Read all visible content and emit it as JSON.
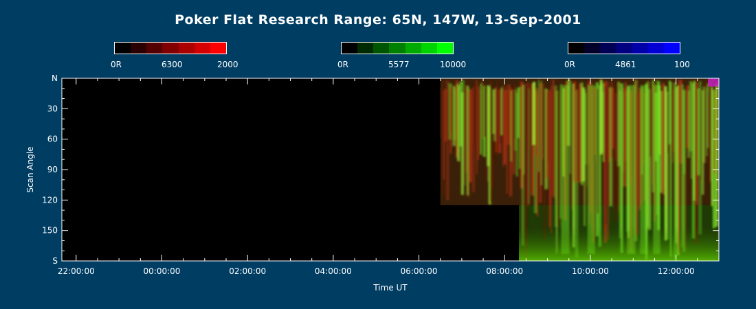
{
  "page": {
    "title": "Poker Flat Research Range: 65N, 147W, 13-Sep-2001"
  },
  "colorbars": [
    {
      "min_label": "0R",
      "mid_label": "6300",
      "max_label": "2000",
      "colors": [
        "#000000",
        "#2a0000",
        "#550000",
        "#800000",
        "#aa0000",
        "#d40000",
        "#ff0000"
      ]
    },
    {
      "min_label": "0R",
      "mid_label": "5577",
      "max_label": "10000",
      "colors": [
        "#000000",
        "#002a00",
        "#005500",
        "#008000",
        "#00aa00",
        "#00d400",
        "#00ff00"
      ]
    },
    {
      "min_label": "0R",
      "mid_label": "4861",
      "max_label": "100",
      "colors": [
        "#000000",
        "#00002a",
        "#000055",
        "#000080",
        "#0000aa",
        "#0000d4",
        "#0000ff"
      ]
    }
  ],
  "chart_data": {
    "type": "heatmap",
    "title": "Poker Flat Research Range: 65N, 147W, 13-Sep-2001",
    "xlabel": "Time UT",
    "ylabel": "Scan Angle",
    "x_ticks": [
      "22:00:00",
      "00:00:00",
      "02:00:00",
      "04:00:00",
      "06:00:00",
      "08:00:00",
      "10:00:00",
      "12:00:00"
    ],
    "y_ticks": [
      "N",
      "30",
      "60",
      "90",
      "120",
      "150",
      "S"
    ],
    "xlim": [
      "21:40:00",
      "13:00:00"
    ],
    "ylim": [
      "N",
      "S"
    ],
    "channels": [
      {
        "wavelength": "6300",
        "range": [
          0,
          2000
        ],
        "unit": "R",
        "color": "#ff0000"
      },
      {
        "wavelength": "5577",
        "range": [
          0,
          10000
        ],
        "unit": "R",
        "color": "#00ff00"
      },
      {
        "wavelength": "4861",
        "range": [
          0,
          100
        ],
        "unit": "R",
        "color": "#0000ff"
      }
    ],
    "data_coverage": [
      {
        "start": "06:30:00",
        "end": "13:00:00",
        "scan_angle_range": [
          0,
          125
        ]
      },
      {
        "start": "08:20:00",
        "end": "13:00:00",
        "scan_angle_range": [
          125,
          180
        ]
      }
    ]
  }
}
